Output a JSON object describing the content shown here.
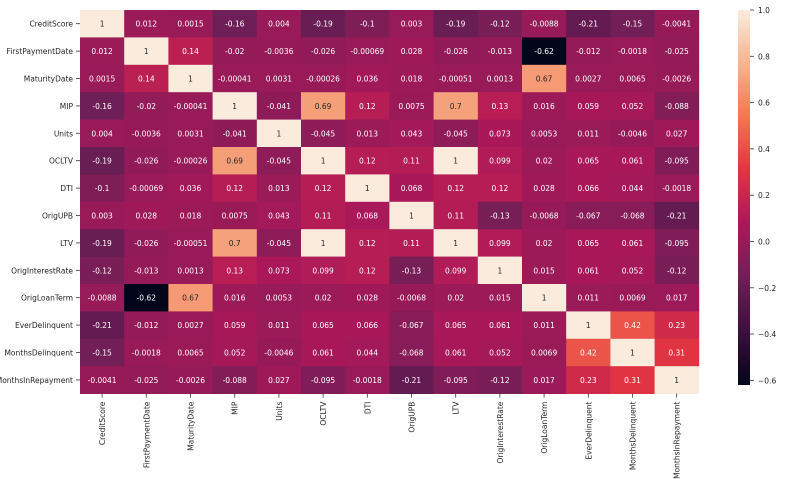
{
  "chart_data": {
    "type": "heatmap",
    "labels": [
      "CreditScore",
      "FirstPaymentDate",
      "MaturityDate",
      "MIP",
      "Units",
      "OCLTV",
      "DTI",
      "OrigUPB",
      "LTV",
      "OrigInterestRate",
      "OrigLoanTerm",
      "EverDelinquent",
      "MonthsDelinquent",
      "MonthsInRepayment"
    ],
    "value_labels": [
      [
        "1",
        "0.012",
        "0.0015",
        "-0.16",
        "0.004",
        "-0.19",
        "-0.1",
        "0.003",
        "-0.19",
        "-0.12",
        "-0.0088",
        "-0.21",
        "-0.15",
        "-0.0041"
      ],
      [
        "0.012",
        "1",
        "0.14",
        "-0.02",
        "-0.0036",
        "-0.026",
        "-0.00069",
        "0.028",
        "-0.026",
        "-0.013",
        "-0.62",
        "-0.012",
        "-0.0018",
        "-0.025"
      ],
      [
        "0.0015",
        "0.14",
        "1",
        "-0.00041",
        "0.0031",
        "-0.00026",
        "0.036",
        "0.018",
        "-0.00051",
        "0.0013",
        "0.67",
        "0.0027",
        "0.0065",
        "-0.0026"
      ],
      [
        "-0.16",
        "-0.02",
        "-0.00041",
        "1",
        "-0.041",
        "0.69",
        "0.12",
        "0.0075",
        "0.7",
        "0.13",
        "0.016",
        "0.059",
        "0.052",
        "-0.088"
      ],
      [
        "0.004",
        "-0.0036",
        "0.0031",
        "-0.041",
        "1",
        "-0.045",
        "0.013",
        "0.043",
        "-0.045",
        "0.073",
        "0.0053",
        "0.011",
        "-0.0046",
        "0.027"
      ],
      [
        "-0.19",
        "-0.026",
        "-0.00026",
        "0.69",
        "-0.045",
        "1",
        "0.12",
        "0.11",
        "1",
        "0.099",
        "0.02",
        "0.065",
        "0.061",
        "-0.095"
      ],
      [
        "-0.1",
        "-0.00069",
        "0.036",
        "0.12",
        "0.013",
        "0.12",
        "1",
        "0.068",
        "0.12",
        "0.12",
        "0.028",
        "0.066",
        "0.044",
        "-0.0018"
      ],
      [
        "0.003",
        "0.028",
        "0.018",
        "0.0075",
        "0.043",
        "0.11",
        "0.068",
        "1",
        "0.11",
        "-0.13",
        "-0.0068",
        "-0.067",
        "-0.068",
        "-0.21"
      ],
      [
        "-0.19",
        "-0.026",
        "-0.00051",
        "0.7",
        "-0.045",
        "1",
        "0.12",
        "0.11",
        "1",
        "0.099",
        "0.02",
        "0.065",
        "0.061",
        "-0.095"
      ],
      [
        "-0.12",
        "-0.013",
        "0.0013",
        "0.13",
        "0.073",
        "0.099",
        "0.12",
        "-0.13",
        "0.099",
        "1",
        "0.015",
        "0.061",
        "0.052",
        "-0.12"
      ],
      [
        "-0.0088",
        "-0.62",
        "0.67",
        "0.016",
        "0.0053",
        "0.02",
        "0.028",
        "-0.0068",
        "0.02",
        "0.015",
        "1",
        "0.011",
        "0.0069",
        "0.017"
      ],
      [
        "-0.21",
        "-0.012",
        "0.0027",
        "0.059",
        "0.011",
        "0.065",
        "0.066",
        "-0.067",
        "0.065",
        "0.061",
        "0.011",
        "1",
        "0.42",
        "0.23"
      ],
      [
        "-0.15",
        "-0.0018",
        "0.0065",
        "0.052",
        "-0.0046",
        "0.061",
        "0.044",
        "-0.068",
        "0.061",
        "0.052",
        "0.0069",
        "0.42",
        "1",
        "0.31"
      ],
      [
        "-0.0041",
        "-0.025",
        "-0.0026",
        "-0.088",
        "0.027",
        "-0.095",
        "-0.0018",
        "-0.21",
        "-0.095",
        "-0.12",
        "0.017",
        "0.23",
        "0.31",
        "1"
      ]
    ],
    "colorbar": {
      "min": -0.62,
      "max": 1.0,
      "ticks": [
        1.0,
        0.8,
        0.6,
        0.4,
        0.2,
        0.0,
        -0.2,
        -0.4,
        -0.6
      ],
      "tick_labels": [
        "1.0",
        "0.8",
        "0.6",
        "0.4",
        "0.2",
        "0.0",
        "−0.2",
        "−0.4",
        "−0.6"
      ],
      "colormap": "rocket",
      "color_stops": [
        "#03051a",
        "#3b0f3e",
        "#701f57",
        "#ab1859",
        "#e13342",
        "#f37651",
        "#f6b48e",
        "#faebdd"
      ]
    }
  }
}
